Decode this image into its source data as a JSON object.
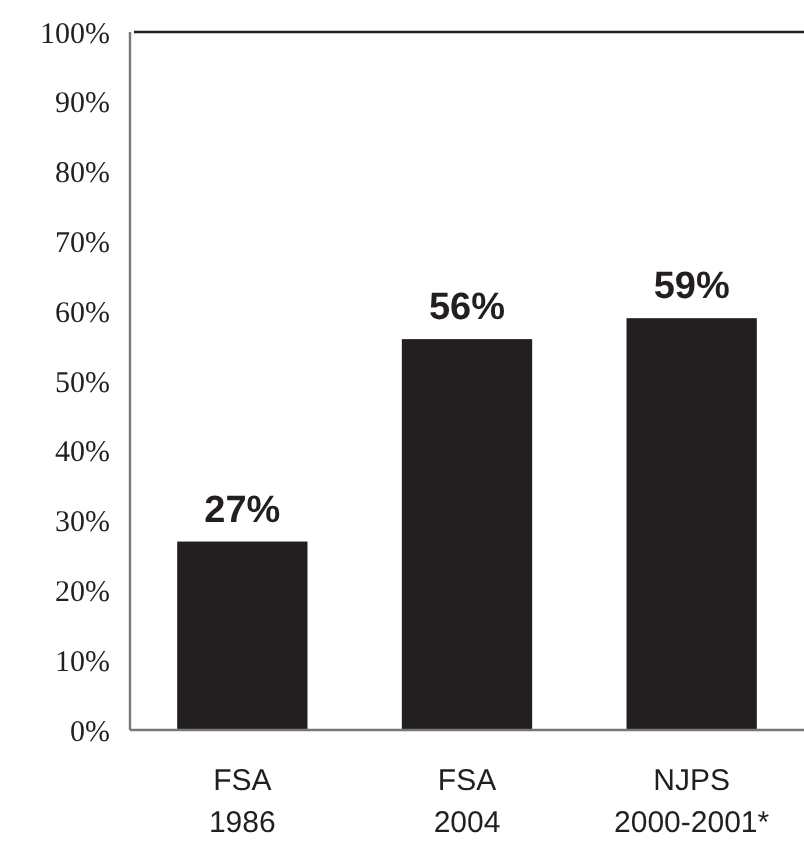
{
  "chart_data": {
    "type": "bar",
    "categories": [
      "FSA\n1986",
      "FSA\n2004",
      "NJPS\n2000-2001*"
    ],
    "values": [
      27,
      56,
      59
    ],
    "value_labels": [
      "27%",
      "56%",
      "59%"
    ],
    "color": "#231f20",
    "grid": false,
    "ylim": [
      0,
      100
    ],
    "yticks": [
      {
        "value": 0,
        "label": "0%"
      },
      {
        "value": 10,
        "label": "10%"
      },
      {
        "value": 20,
        "label": "20%"
      },
      {
        "value": 30,
        "label": "30%"
      },
      {
        "value": 40,
        "label": "40%"
      },
      {
        "value": 50,
        "label": "50%"
      },
      {
        "value": 60,
        "label": "60%"
      },
      {
        "value": 70,
        "label": "70%"
      },
      {
        "value": 80,
        "label": "80%"
      },
      {
        "value": 90,
        "label": "90%"
      },
      {
        "value": 100,
        "label": "100%"
      }
    ]
  }
}
